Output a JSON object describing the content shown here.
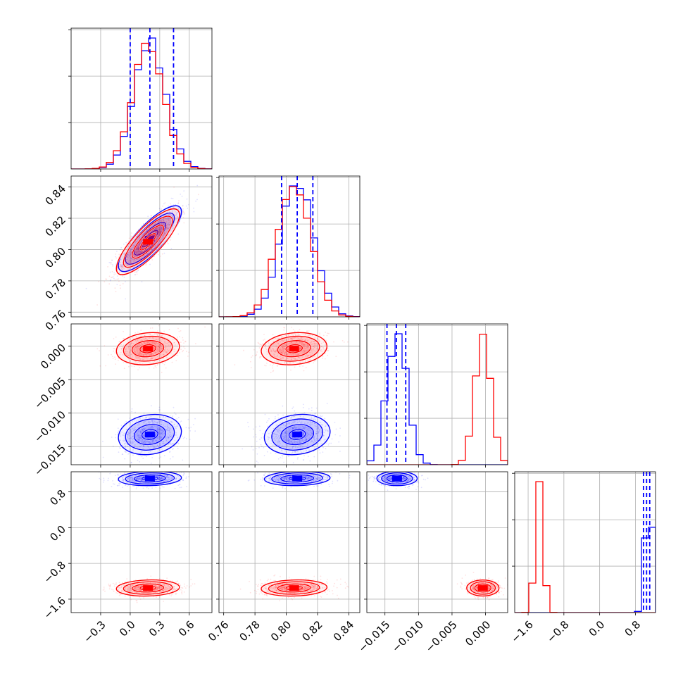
{
  "colors": {
    "blue": "#0000ff",
    "red": "#ff0000",
    "grid": "#b0b0b0",
    "frame": "#000000"
  },
  "chart_data": {
    "type": "corner",
    "grid": true,
    "parameters": [
      {
        "ticks": [
          -0.3,
          0.0,
          0.3,
          0.6
        ],
        "tick_labels": [
          "−0.3",
          "0.0",
          "0.3",
          "0.6"
        ],
        "range": [
          -0.6,
          0.83
        ]
      },
      {
        "ticks": [
          0.76,
          0.78,
          0.8,
          0.82,
          0.84
        ],
        "tick_labels": [
          "0.76",
          "0.78",
          "0.80",
          "0.82",
          "0.84"
        ],
        "range": [
          0.757,
          0.847
        ]
      },
      {
        "ticks": [
          -0.015,
          -0.01,
          -0.005,
          0.0
        ],
        "tick_labels": [
          "−0.015",
          "−0.010",
          "−0.005",
          "0.000"
        ],
        "range": [
          -0.0177,
          0.0033
        ]
      },
      {
        "ticks": [
          -1.6,
          -0.8,
          0.0,
          0.8
        ],
        "tick_labels": [
          "−1.6",
          "−0.8",
          "0.0",
          "0.8"
        ],
        "range": [
          -1.9,
          1.25
        ]
      }
    ],
    "series": [
      {
        "color": "blue",
        "mean": [
          0.2,
          0.807,
          -0.0132,
          1.1
        ],
        "sd": [
          0.16,
          0.0105,
          0.0015,
          0.08
        ],
        "quantiles": [
          [
            0.0,
            0.2,
            0.44
          ],
          [
            0.797,
            0.807,
            0.817
          ],
          [
            -0.0147,
            -0.0133,
            -0.0119
          ],
          [
            0.98,
            1.05,
            1.12
          ]
        ]
      },
      {
        "color": "red",
        "mean": [
          0.18,
          0.805,
          -0.0004,
          -1.35
        ],
        "sd": [
          0.16,
          0.0105,
          0.0012,
          0.09
        ]
      }
    ],
    "correlations": [
      {
        "pair": [
          0,
          1
        ],
        "blue": 0.82,
        "red": 0.82
      },
      {
        "pair": [
          0,
          2
        ],
        "blue": 0.15,
        "red": 0.15
      },
      {
        "pair": [
          1,
          2
        ],
        "blue": 0.15,
        "red": 0.15
      },
      {
        "pair": [
          0,
          3
        ],
        "blue": 0.1,
        "red": 0.1
      },
      {
        "pair": [
          1,
          3
        ],
        "blue": 0.1,
        "red": 0.1
      },
      {
        "pair": [
          2,
          3
        ],
        "blue": 0.0,
        "red": 0.0
      }
    ]
  }
}
